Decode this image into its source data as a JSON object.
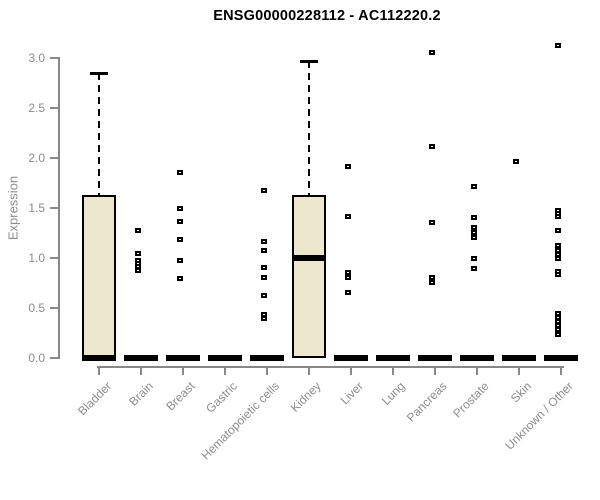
{
  "title": "ENSG00000228112 - AC112220.2",
  "chart_data": {
    "type": "boxplot",
    "title": "ENSG00000228112 - AC112220.2",
    "xlabel": "",
    "ylabel": "Expression",
    "ylim": [
      0,
      3.2
    ],
    "yticks": [
      0.0,
      0.5,
      1.0,
      1.5,
      2.0,
      2.5,
      3.0
    ],
    "grid": false,
    "legend": "none",
    "box_fill_color": "#ede8cd",
    "box_border_color": "#000000",
    "axis_color": "#888888",
    "axis_text_color": "#8c8c8c",
    "categories": [
      "Bladder",
      "Brain",
      "Breast",
      "Gastric",
      "Hematopoietic cells",
      "Kidney",
      "Liver",
      "Lung",
      "Pancreas",
      "Prostate",
      "Skin",
      "Unknown / Other"
    ],
    "boxes": [
      {
        "category": "Bladder",
        "q1": 0,
        "median": 0,
        "q3": 1.63,
        "whisker_low": 0,
        "whisker_high": 2.85,
        "outliers": []
      },
      {
        "category": "Brain",
        "q1": 0,
        "median": 0,
        "q3": 0,
        "whisker_low": 0,
        "whisker_high": 0,
        "outliers": [
          1.28,
          1.05,
          0.98,
          0.95,
          0.92,
          0.88
        ]
      },
      {
        "category": "Breast",
        "q1": 0,
        "median": 0,
        "q3": 0,
        "whisker_low": 0,
        "whisker_high": 0,
        "outliers": [
          1.86,
          1.5,
          1.37,
          1.19,
          0.98,
          0.8
        ]
      },
      {
        "category": "Gastric",
        "q1": 0,
        "median": 0,
        "q3": 0,
        "whisker_low": 0,
        "whisker_high": 0,
        "outliers": []
      },
      {
        "category": "Hematopoietic cells",
        "q1": 0,
        "median": 0,
        "q3": 0,
        "whisker_low": 0,
        "whisker_high": 0,
        "outliers": [
          1.68,
          1.17,
          1.08,
          0.91,
          0.81,
          0.63,
          0.44,
          0.4
        ]
      },
      {
        "category": "Kidney",
        "q1": 0,
        "median": 1.0,
        "q3": 1.63,
        "whisker_low": 0,
        "whisker_high": 2.97,
        "outliers": []
      },
      {
        "category": "Liver",
        "q1": 0,
        "median": 0,
        "q3": 0,
        "whisker_low": 0,
        "whisker_high": 0,
        "outliers": [
          1.92,
          1.42,
          0.86,
          0.81,
          0.66
        ]
      },
      {
        "category": "Lung",
        "q1": 0,
        "median": 0,
        "q3": 0,
        "whisker_low": 0,
        "whisker_high": 0,
        "outliers": []
      },
      {
        "category": "Pancreas",
        "q1": 0,
        "median": 0,
        "q3": 0,
        "whisker_low": 0,
        "whisker_high": 0,
        "outliers": [
          3.06,
          2.12,
          1.36,
          0.81,
          0.76
        ]
      },
      {
        "category": "Prostate",
        "q1": 0,
        "median": 0,
        "q3": 0,
        "whisker_low": 0,
        "whisker_high": 0,
        "outliers": [
          1.72,
          1.41,
          1.31,
          1.26,
          1.21,
          1.0,
          0.9
        ]
      },
      {
        "category": "Skin",
        "q1": 0,
        "median": 0,
        "q3": 0,
        "whisker_low": 0,
        "whisker_high": 0,
        "outliers": [
          1.97
        ]
      },
      {
        "category": "Unknown / Other",
        "q1": 0,
        "median": 0,
        "q3": 0,
        "whisker_low": 0,
        "whisker_high": 0,
        "outliers": [
          3.13,
          1.48,
          1.45,
          1.42,
          1.28,
          1.13,
          1.08,
          1.04,
          1.0,
          0.87,
          0.84,
          0.45,
          0.41,
          0.37,
          0.33,
          0.29,
          0.24
        ]
      }
    ]
  }
}
